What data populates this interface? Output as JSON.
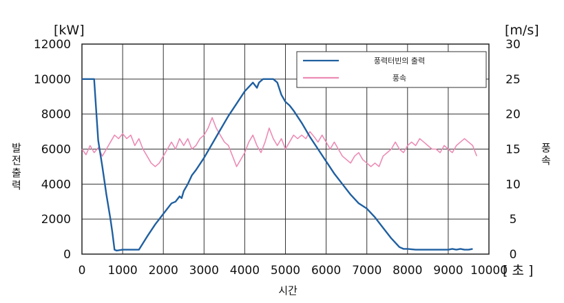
{
  "chart_data": {
    "type": "line",
    "y_unit_left": "[kW]",
    "y_unit_right": "[m/s]",
    "x_unit": "[ 초 ]",
    "xlabel": "시간",
    "ylabel_left": "발전출력",
    "ylabel_right": "풍속",
    "xlim": [
      0,
      10000
    ],
    "ylim_left": [
      0,
      12000
    ],
    "ylim_right": [
      0,
      30
    ],
    "x_ticks": [
      "0",
      "1000",
      "2000",
      "3000",
      "4000",
      "5000",
      "6000",
      "7000",
      "8000",
      "9000",
      "10000"
    ],
    "y_ticks_left": [
      "0",
      "2000",
      "4000",
      "6000",
      "8000",
      "10000",
      "12000"
    ],
    "y_ticks_right": [
      "0",
      "5",
      "10",
      "15",
      "20",
      "25",
      "30"
    ],
    "grid": true,
    "legend_position": "top-right",
    "colors": {
      "power": "#1f5fa0",
      "wind": "#ec8bb5",
      "grid": "#333333"
    },
    "series": [
      {
        "name": "풍력터빈의 출력",
        "axis": "left",
        "x": [
          0,
          300,
          350,
          400,
          500,
          600,
          700,
          750,
          800,
          850,
          1000,
          1200,
          1400,
          1600,
          1800,
          2000,
          2200,
          2300,
          2400,
          2450,
          2500,
          2600,
          2700,
          2800,
          3000,
          3200,
          3400,
          3600,
          3800,
          4000,
          4200,
          4300,
          4350,
          4400,
          4450,
          4500,
          4600,
          4700,
          4800,
          4900,
          5000,
          5100,
          5200,
          5400,
          5600,
          5800,
          6000,
          6200,
          6400,
          6600,
          6800,
          7000,
          7200,
          7400,
          7600,
          7800,
          7900,
          8000,
          8200,
          8500,
          8800,
          9000,
          9100,
          9200,
          9300,
          9400,
          9500,
          9600
        ],
        "y": [
          10000,
          10000,
          8200,
          6500,
          5000,
          3400,
          2000,
          1200,
          250,
          200,
          250,
          250,
          250,
          1000,
          1700,
          2300,
          2900,
          3000,
          3300,
          3200,
          3600,
          4000,
          4500,
          4800,
          5500,
          6300,
          7100,
          7900,
          8600,
          9300,
          9800,
          9500,
          9800,
          9900,
          10000,
          10000,
          10000,
          10000,
          9800,
          9100,
          8700,
          8500,
          8200,
          7500,
          6700,
          6000,
          5300,
          4600,
          4000,
          3400,
          2900,
          2600,
          2100,
          1500,
          900,
          400,
          300,
          300,
          250,
          250,
          250,
          250,
          300,
          250,
          300,
          250,
          250,
          300
        ]
      },
      {
        "name": "풍속",
        "axis": "right",
        "x": [
          0,
          100,
          200,
          300,
          400,
          500,
          600,
          700,
          800,
          900,
          1000,
          1100,
          1200,
          1300,
          1400,
          1500,
          1600,
          1700,
          1800,
          1900,
          2000,
          2100,
          2200,
          2300,
          2400,
          2500,
          2600,
          2700,
          2800,
          2900,
          3000,
          3100,
          3200,
          3300,
          3400,
          3500,
          3600,
          3700,
          3800,
          3900,
          4000,
          4100,
          4200,
          4300,
          4400,
          4500,
          4600,
          4700,
          4800,
          4900,
          5000,
          5100,
          5200,
          5300,
          5400,
          5500,
          5600,
          5700,
          5800,
          5900,
          6000,
          6100,
          6200,
          6300,
          6400,
          6500,
          6600,
          6700,
          6800,
          6900,
          7000,
          7100,
          7200,
          7300,
          7400,
          7500,
          7600,
          7700,
          7800,
          7900,
          8000,
          8100,
          8200,
          8300,
          8400,
          8500,
          8600,
          8700,
          8800,
          8900,
          9000,
          9100,
          9200,
          9300,
          9400,
          9500,
          9600,
          9700
        ],
        "y": [
          15,
          14.2,
          15.5,
          14.5,
          15.2,
          14,
          15,
          16,
          17,
          16.5,
          17.2,
          16.5,
          17,
          15.5,
          16.5,
          15,
          14,
          13,
          12.5,
          13,
          14,
          15,
          16,
          15,
          16.5,
          15.5,
          16.5,
          15,
          15.5,
          16.5,
          17,
          18,
          19.5,
          18,
          17,
          16,
          15.5,
          14,
          12.5,
          13.5,
          14.5,
          16,
          17,
          15.5,
          14.5,
          16,
          18,
          16.5,
          15.5,
          16.5,
          15,
          16,
          17,
          16.5,
          17,
          16.5,
          17.5,
          16.8,
          16,
          17,
          16,
          15,
          16,
          15,
          14,
          13.5,
          13,
          14,
          14.5,
          13.5,
          13,
          12.5,
          13,
          12.5,
          14,
          14.5,
          15,
          16,
          15,
          14.5,
          15.5,
          16,
          15.5,
          16.5,
          16,
          15.5,
          15,
          15,
          14.5,
          15.5,
          15,
          14.5,
          15.5,
          16,
          16.5,
          16,
          15.5,
          14
        ]
      }
    ]
  }
}
